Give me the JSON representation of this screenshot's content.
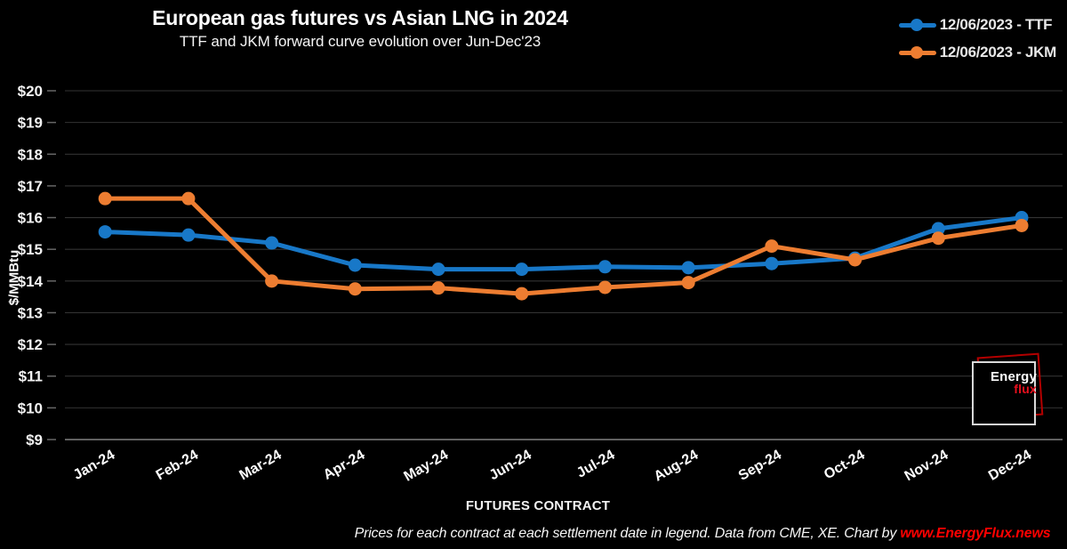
{
  "chart_data": {
    "type": "line",
    "title": "European gas futures vs Asian LNG in 2024",
    "subtitle": "TTF and JKM forward curve evolution over Jun-Dec'23",
    "xlabel": "FUTURES CONTRACT",
    "ylabel": "$/MMBtu",
    "categories": [
      "Jan-24",
      "Feb-24",
      "Mar-24",
      "Apr-24",
      "May-24",
      "Jun-24",
      "Jul-24",
      "Aug-24",
      "Sep-24",
      "Oct-24",
      "Nov-24",
      "Dec-24"
    ],
    "series": [
      {
        "name": "12/06/2023 - TTF",
        "slug": "ttf",
        "color": "#1878C8",
        "values": [
          15.55,
          15.45,
          15.2,
          14.5,
          14.37,
          14.37,
          14.45,
          14.42,
          14.55,
          14.72,
          15.65,
          16.0
        ]
      },
      {
        "name": "12/06/2023 - JKM",
        "slug": "jkm",
        "color": "#ED7D31",
        "values": [
          16.6,
          16.6,
          14.0,
          13.75,
          13.78,
          13.6,
          13.8,
          13.95,
          15.1,
          14.67,
          15.35,
          15.75
        ]
      }
    ],
    "ylim": [
      9,
      20
    ],
    "ytick_step": 1,
    "ytick_prefix": "$",
    "grid": "horizontal",
    "legend_position": "top-right",
    "colors": {
      "background": "#000000",
      "gridline": "#333333",
      "axis_baseline": "#808080",
      "tick": "#666666",
      "tick_label": "#f2f2f2",
      "x_label": "#ffffff"
    }
  },
  "footer": {
    "text": "Prices for each contract at each settlement date in legend. Data from CME, XE. Chart by ",
    "link": "www.EnergyFlux.news",
    "link_color": "#ff0000"
  },
  "logo": {
    "line1": "Energy",
    "line2": "flux",
    "accent": "#e8101e"
  }
}
